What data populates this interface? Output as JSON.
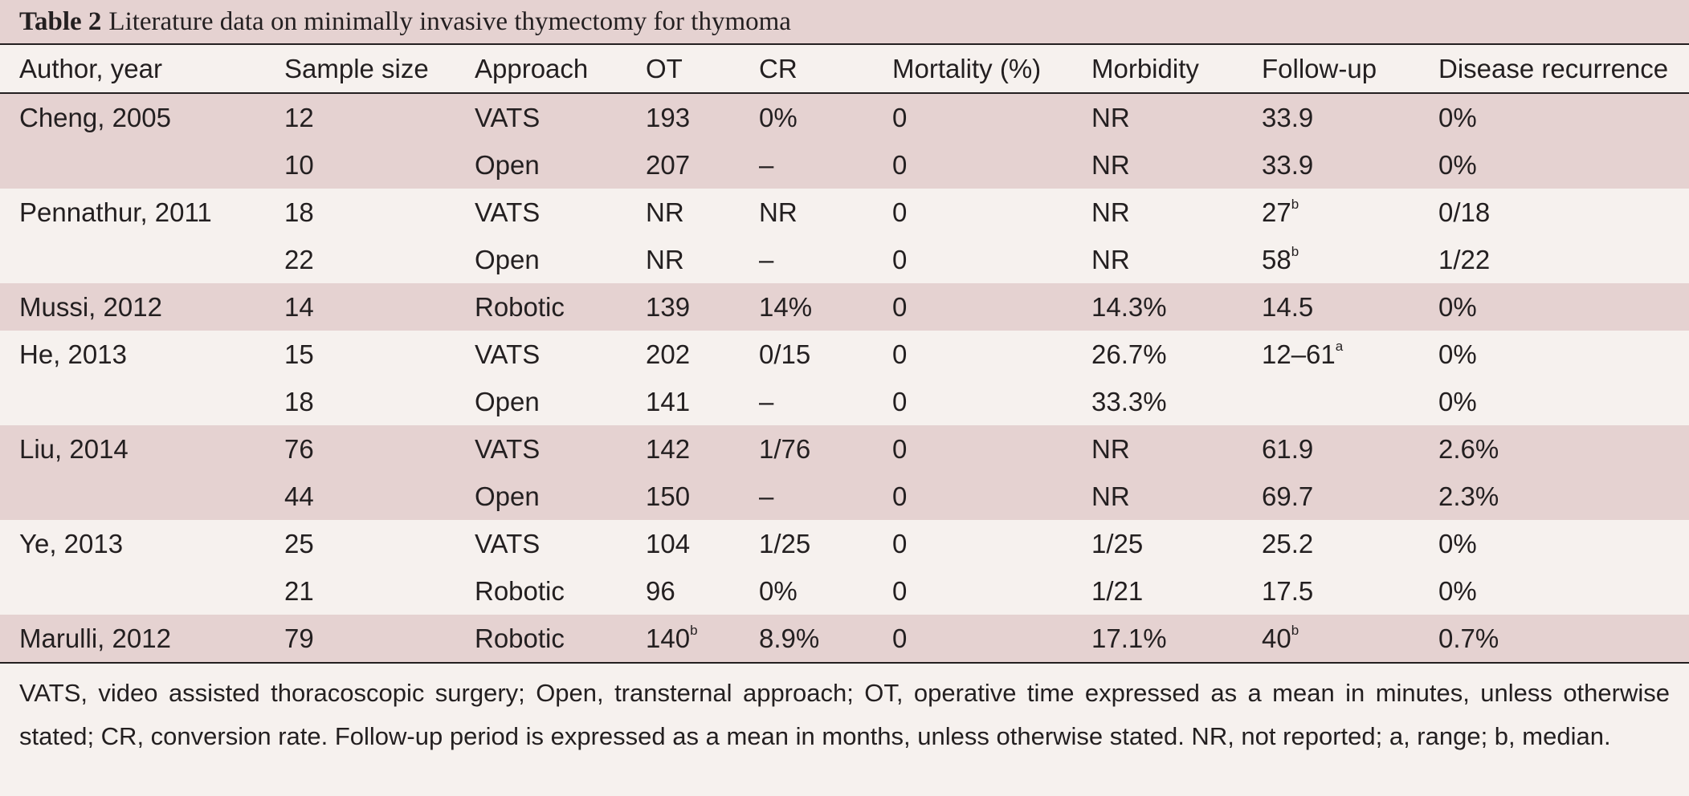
{
  "title": {
    "label": "Table 2",
    "text": "Literature data on minimally invasive thymectomy for thymoma"
  },
  "headers": [
    "Author, year",
    "Sample size",
    "Approach",
    "OT",
    "CR",
    "Mortality (%)",
    "Morbidity",
    "Follow-up",
    "Disease recurrence"
  ],
  "rows": [
    {
      "shade": true,
      "cells": [
        "Cheng, 2005",
        "12",
        "VATS",
        "193",
        "0%",
        "0",
        "NR",
        "33.9",
        "0%"
      ]
    },
    {
      "shade": true,
      "cells": [
        "",
        "10",
        "Open",
        "207",
        "–",
        "0",
        "NR",
        "33.9",
        "0%"
      ]
    },
    {
      "shade": false,
      "cells": [
        "Pennathur, 2011",
        "18",
        "VATS",
        "NR",
        "NR",
        "0",
        "NR",
        "27",
        "0/18"
      ],
      "sup": {
        "7": "b"
      }
    },
    {
      "shade": false,
      "cells": [
        "",
        "22",
        "Open",
        "NR",
        "–",
        "0",
        "NR",
        "58",
        "1/22"
      ],
      "sup": {
        "7": "b"
      }
    },
    {
      "shade": true,
      "cells": [
        "Mussi, 2012",
        "14",
        "Robotic",
        "139",
        "14%",
        "0",
        "14.3%",
        "14.5",
        "0%"
      ]
    },
    {
      "shade": false,
      "cells": [
        "He, 2013",
        "15",
        "VATS",
        "202",
        "0/15",
        "0",
        "26.7%",
        "12–61",
        "0%"
      ],
      "sup": {
        "7": "a"
      }
    },
    {
      "shade": false,
      "cells": [
        "",
        "18",
        "Open",
        "141",
        "–",
        "0",
        "33.3%",
        "",
        "0%"
      ]
    },
    {
      "shade": true,
      "cells": [
        "Liu, 2014",
        "76",
        "VATS",
        "142",
        "1/76",
        "0",
        "NR",
        "61.9",
        "2.6%"
      ]
    },
    {
      "shade": true,
      "cells": [
        "",
        "44",
        "Open",
        "150",
        "–",
        "0",
        "NR",
        "69.7",
        "2.3%"
      ]
    },
    {
      "shade": false,
      "cells": [
        "Ye, 2013",
        "25",
        "VATS",
        "104",
        "1/25",
        "0",
        "1/25",
        "25.2",
        "0%"
      ]
    },
    {
      "shade": false,
      "cells": [
        "",
        "21",
        "Robotic",
        "96",
        "0%",
        "0",
        "1/21",
        "17.5",
        "0%"
      ]
    },
    {
      "shade": true,
      "cells": [
        "Marulli, 2012",
        "79",
        "Robotic",
        "140",
        "8.9%",
        "0",
        "17.1%",
        "40",
        "0.7%"
      ],
      "sup": {
        "3": "b",
        "7": "b"
      }
    }
  ],
  "footnote": "VATS, video assisted thoracoscopic surgery; Open, transternal approach; OT, operative time expressed as a mean in minutes, unless otherwise stated; CR, conversion rate. Follow-up period is expressed as a mean in months, unless otherwise stated. NR, not reported; a, range; b, median."
}
